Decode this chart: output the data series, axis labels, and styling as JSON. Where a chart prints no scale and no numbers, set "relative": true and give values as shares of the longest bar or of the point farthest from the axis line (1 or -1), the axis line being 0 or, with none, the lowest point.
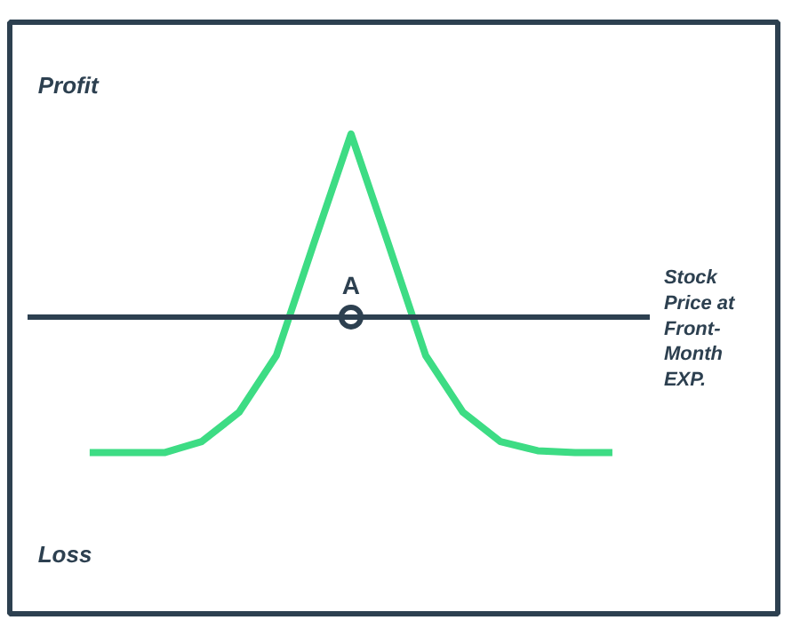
{
  "chart_data": {
    "type": "line",
    "relative": true,
    "xlabel": "Stock Price at Front-Month EXP.",
    "categories": [
      null,
      null,
      null,
      null,
      null,
      null,
      null,
      null,
      null,
      null,
      null,
      null,
      null,
      null,
      null
    ],
    "series": [
      {
        "color": "#3ddc84",
        "values": [
          -0.74,
          -0.74,
          -0.74,
          -0.68,
          -0.52,
          -0.21,
          0.4,
          1.0,
          0.4,
          -0.21,
          -0.52,
          -0.68,
          -0.73,
          -0.74,
          -0.74
        ]
      }
    ],
    "annotations": [
      "Profit",
      "Loss",
      {
        "text": "A",
        "y": 0
      }
    ],
    "marker": "none",
    "line_style": "solid"
  }
}
